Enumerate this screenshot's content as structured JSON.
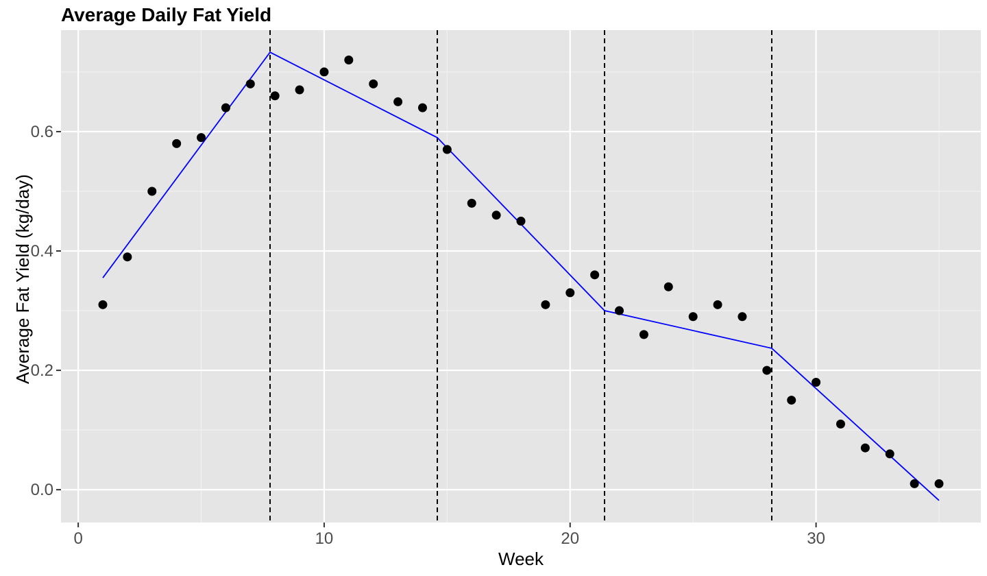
{
  "chart_data": {
    "type": "scatter",
    "title": "Average Daily Fat Yield",
    "xlabel": "Week",
    "ylabel": "Average Fat Yield (kg/day)",
    "xlim": [
      -0.7,
      36.7
    ],
    "ylim": [
      -0.055,
      0.77
    ],
    "x_ticks": [
      0,
      10,
      20,
      30
    ],
    "x_tick_labels": [
      "0",
      "10",
      "20",
      "30"
    ],
    "x_minor_ticks": [
      5,
      15,
      25,
      35
    ],
    "y_ticks": [
      0.0,
      0.2,
      0.4,
      0.6
    ],
    "y_tick_labels": [
      "0.0",
      "0.2",
      "0.4",
      "0.6"
    ],
    "y_minor_ticks": [
      0.1,
      0.3,
      0.5,
      0.7
    ],
    "grid": true,
    "points": {
      "x": [
        1,
        2,
        3,
        4,
        5,
        6,
        7,
        8,
        9,
        10,
        11,
        12,
        13,
        14,
        15,
        16,
        17,
        18,
        19,
        20,
        21,
        22,
        23,
        24,
        25,
        26,
        27,
        28,
        29,
        30,
        31,
        32,
        33,
        34,
        35
      ],
      "y": [
        0.31,
        0.39,
        0.5,
        0.58,
        0.59,
        0.64,
        0.68,
        0.66,
        0.67,
        0.7,
        0.72,
        0.68,
        0.65,
        0.64,
        0.57,
        0.48,
        0.46,
        0.45,
        0.31,
        0.33,
        0.36,
        0.3,
        0.26,
        0.34,
        0.29,
        0.31,
        0.29,
        0.2,
        0.15,
        0.18,
        0.11,
        0.07,
        0.06,
        0.01,
        0.01
      ],
      "color": "#000000"
    },
    "fit_line": {
      "x": [
        1,
        7.8,
        14.6,
        21.4,
        28.2,
        35
      ],
      "y": [
        0.355,
        0.733,
        0.59,
        0.3,
        0.237,
        -0.018
      ],
      "color": "#0000ff"
    },
    "breakpoints": {
      "x": [
        7.8,
        14.6,
        21.4,
        28.2
      ],
      "style": "dashed",
      "color": "#000000"
    },
    "colors": {
      "panel_background": "#e5e5e5",
      "grid_major": "#ffffff",
      "grid_minor": "#f2f2f2"
    }
  }
}
